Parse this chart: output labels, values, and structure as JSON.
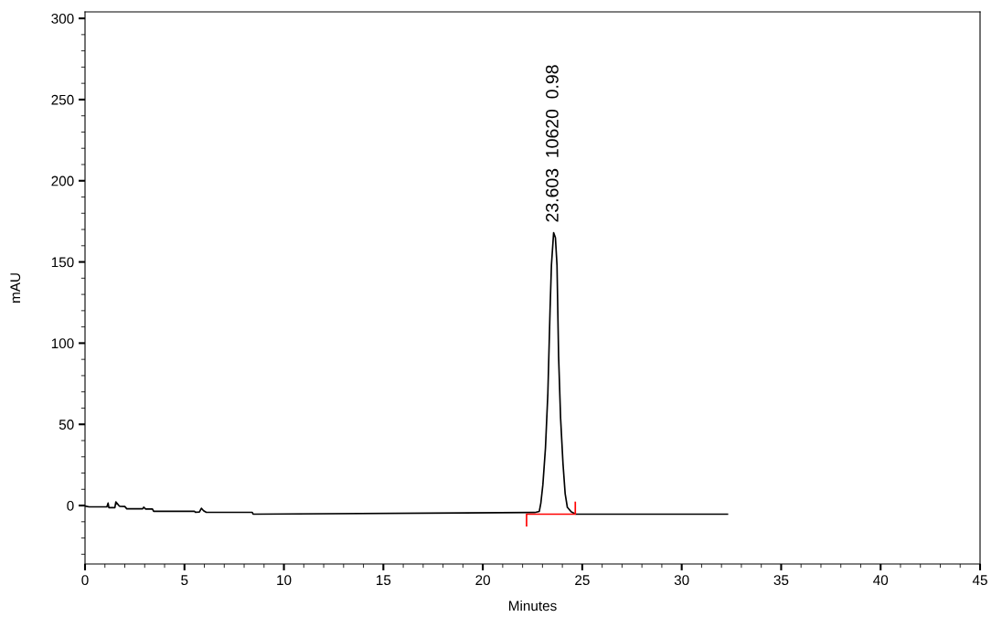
{
  "chart_data": {
    "type": "line",
    "xlabel": "Minutes",
    "ylabel": "mAU",
    "xlim": [
      0,
      45
    ],
    "xticks": [
      0,
      5,
      10,
      15,
      20,
      25,
      30,
      35,
      40,
      45
    ],
    "ylim": [
      -36,
      304
    ],
    "yticks": [
      0,
      50,
      100,
      150,
      200,
      250,
      300
    ],
    "grid": false,
    "legend": false,
    "marker": "none",
    "line_style": "solid",
    "series": [
      {
        "color": "#000000",
        "x": [
          0,
          0.2,
          1.1,
          1.16,
          1.2,
          1.5,
          1.55,
          1.7,
          1.75,
          2.0,
          2.1,
          2.9,
          2.95,
          3.05,
          3.39,
          3.45,
          5.5,
          5.55,
          5.75,
          5.85,
          5.96,
          6.1,
          8.41,
          8.45,
          22.61,
          22.84,
          22.92,
          23.02,
          23.15,
          23.27,
          23.38,
          23.45,
          23.56,
          23.65,
          23.73,
          23.81,
          23.91,
          24.03,
          24.14,
          24.25,
          24.45,
          24.68,
          32.3
        ],
        "values": [
          -0.3,
          -0.8,
          -0.8,
          1.5,
          -1.3,
          -1.3,
          2.2,
          0,
          -0.5,
          -0.6,
          -2,
          -2,
          -1,
          -2.2,
          -2.2,
          -3.6,
          -3.6,
          -4.1,
          -4,
          -1.7,
          -3.2,
          -4.2,
          -4.2,
          -5.3,
          -4.3,
          -3.6,
          1.7,
          12.9,
          35.5,
          69,
          120,
          148,
          168,
          165,
          148,
          92,
          54,
          26,
          7.3,
          -1.1,
          -3.9,
          -5.3,
          -5.3
        ]
      },
      {
        "color": "#ff0000",
        "x": [
          22.2,
          22.2,
          24.65,
          24.65
        ],
        "values": [
          -12.4,
          -5.3,
          -5.3,
          2
        ]
      }
    ],
    "annotations": [
      "23.603  10620  0.98"
    ]
  }
}
